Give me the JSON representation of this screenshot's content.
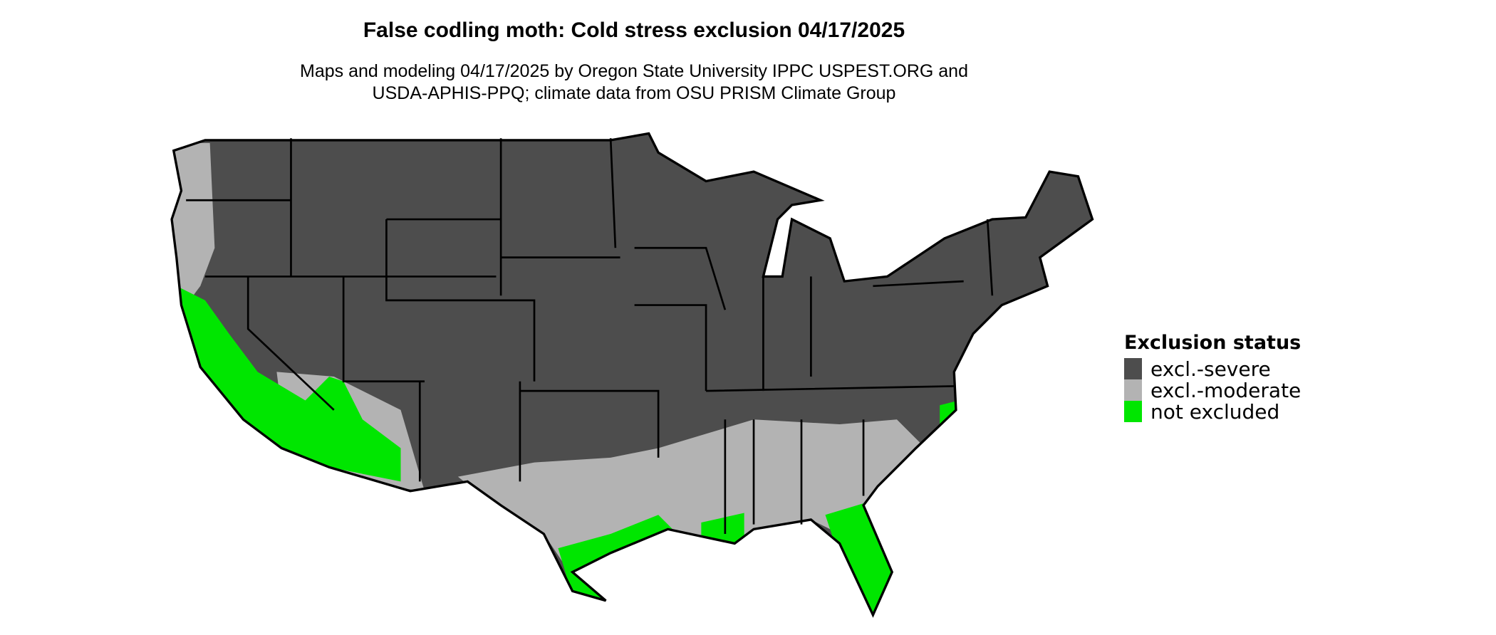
{
  "title": "False codling moth: Cold stress exclusion 04/17/2025",
  "subtitle_lines": [
    "Maps and modeling 04/17/2025 by Oregon State University IPPC USPEST.ORG and",
    "USDA-APHIS-PPQ; climate data from OSU PRISM Climate Group"
  ],
  "legend": {
    "title": "Exclusion status",
    "items": [
      {
        "label": "excl.-severe",
        "color": "#4d4d4d"
      },
      {
        "label": "excl.-moderate",
        "color": "#b3b3b3"
      },
      {
        "label": "not excluded",
        "color": "#00e600"
      }
    ]
  },
  "map": {
    "region": "contiguous United States",
    "border_color": "#000000"
  }
}
